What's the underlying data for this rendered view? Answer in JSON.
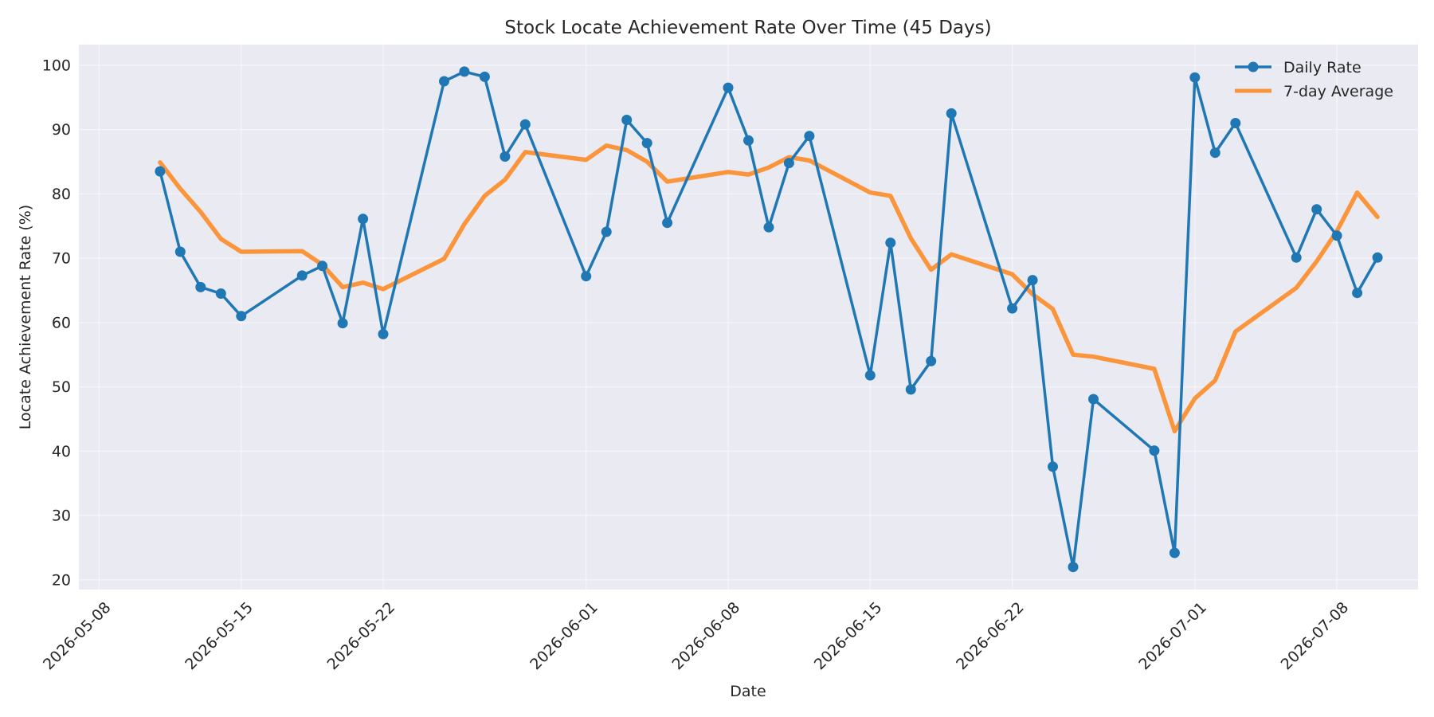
{
  "chart_data": {
    "type": "line",
    "title": "Stock Locate Achievement Rate Over Time (45 Days)",
    "xlabel": "Date",
    "ylabel": "Locate Achievement Rate (%)",
    "xlim": [
      "2026-05-07",
      "2026-07-12"
    ],
    "ylim": [
      18.5,
      103.2
    ],
    "grid": true,
    "legend_position": "top-right",
    "x_ticks": [
      "2026-05-08",
      "2026-05-15",
      "2026-05-22",
      "2026-06-01",
      "2026-06-08",
      "2026-06-15",
      "2026-06-22",
      "2026-07-01",
      "2026-07-08"
    ],
    "y_ticks": [
      20,
      30,
      40,
      50,
      60,
      70,
      80,
      90,
      100
    ],
    "x": [
      "2026-05-11",
      "2026-05-12",
      "2026-05-13",
      "2026-05-14",
      "2026-05-15",
      "2026-05-18",
      "2026-05-19",
      "2026-05-20",
      "2026-05-21",
      "2026-05-22",
      "2026-05-25",
      "2026-05-26",
      "2026-05-27",
      "2026-05-28",
      "2026-05-29",
      "2026-06-01",
      "2026-06-02",
      "2026-06-03",
      "2026-06-04",
      "2026-06-05",
      "2026-06-08",
      "2026-06-09",
      "2026-06-10",
      "2026-06-11",
      "2026-06-12",
      "2026-06-15",
      "2026-06-16",
      "2026-06-17",
      "2026-06-18",
      "2026-06-19",
      "2026-06-22",
      "2026-06-23",
      "2026-06-24",
      "2026-06-25",
      "2026-06-26",
      "2026-06-29",
      "2026-06-30",
      "2026-07-01",
      "2026-07-02",
      "2026-07-03",
      "2026-07-06",
      "2026-07-07",
      "2026-07-08",
      "2026-07-09",
      "2026-07-10"
    ],
    "series": [
      {
        "name": "Daily Rate",
        "color": "#1f77b4",
        "marker": "circle",
        "values": [
          83.5,
          71.0,
          65.5,
          64.5,
          61.0,
          67.3,
          68.8,
          59.9,
          76.1,
          58.2,
          97.5,
          99.0,
          98.2,
          85.8,
          90.8,
          67.2,
          74.1,
          91.5,
          87.9,
          75.5,
          96.5,
          88.3,
          74.8,
          84.8,
          89.0,
          51.8,
          72.4,
          49.6,
          54.0,
          92.5,
          62.2,
          66.6,
          37.6,
          22.0,
          48.1,
          40.1,
          24.2,
          98.1,
          86.4,
          91.0,
          70.1,
          77.6,
          73.5,
          64.6,
          70.1
        ]
      },
      {
        "name": "7-day Average",
        "color": "#ff7f0e",
        "marker": "none",
        "values": [
          84.9,
          80.8,
          77.2,
          73.0,
          71.0,
          71.1,
          69.0,
          65.5,
          66.2,
          65.2,
          69.9,
          75.3,
          79.7,
          82.2,
          86.5,
          85.3,
          87.5,
          86.8,
          85.0,
          81.9,
          83.4,
          83.0,
          84.1,
          85.7,
          85.2,
          80.2,
          79.7,
          73.1,
          68.2,
          70.6,
          67.5,
          64.4,
          62.1,
          55.0,
          54.7,
          52.8,
          43.1,
          48.2,
          51.0,
          58.6,
          65.4,
          69.5,
          74.2,
          80.2,
          76.4
        ]
      }
    ]
  }
}
